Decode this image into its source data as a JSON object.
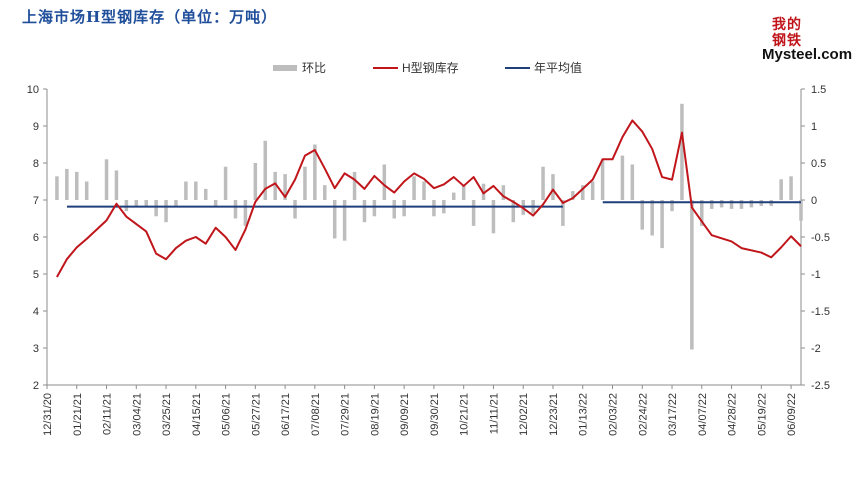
{
  "title": "上海市场H型钢库存（单位：万吨）",
  "logo": {
    "cjk": "我的钢铁",
    "text": "Mysteel.com"
  },
  "colors": {
    "bars": "#bdbdbd",
    "line": "#c0161b",
    "avg": "#1f3f7a",
    "title": "#1f4e9a"
  },
  "chart_data": {
    "type": "bar",
    "legend": [
      {
        "name": "环比",
        "kind": "bar"
      },
      {
        "name": "H型钢库存",
        "kind": "line"
      },
      {
        "name": "年平均值",
        "kind": "line"
      }
    ],
    "legend_position": "top",
    "x_tick_labels": [
      "12/31/20",
      "01/21/21",
      "02/11/21",
      "03/04/21",
      "03/25/21",
      "04/15/21",
      "05/06/21",
      "05/27/21",
      "06/17/21",
      "07/08/21",
      "07/29/21",
      "08/19/21",
      "09/09/21",
      "09/30/21",
      "10/21/21",
      "11/11/21",
      "12/02/21",
      "12/23/21",
      "01/13/22",
      "02/03/22",
      "02/24/22",
      "03/17/22",
      "04/07/22",
      "04/28/22",
      "05/19/22",
      "06/09/22"
    ],
    "x_range": [
      "12/31/20",
      "06/16/22"
    ],
    "left_axis": {
      "min": 2,
      "max": 10,
      "ticks": [
        "2",
        "3",
        "4",
        "5",
        "6",
        "7",
        "8",
        "9",
        "10"
      ]
    },
    "right_axis": {
      "min": -2.5,
      "max": 1.5,
      "ticks": [
        "1.5",
        "1",
        "0.5",
        "0",
        "-0.5",
        "-1",
        "-1.5",
        "-2",
        "-2.5"
      ]
    },
    "grid": false,
    "series": [
      {
        "name": "H型钢库存",
        "axis": "left",
        "type": "line",
        "points": [
          [
            "01/07/21",
            4.92
          ],
          [
            "01/14/21",
            5.4
          ],
          [
            "01/21/21",
            5.72
          ],
          [
            "01/28/21",
            5.95
          ],
          [
            "02/04/21",
            6.2
          ],
          [
            "02/11/21",
            6.45
          ],
          [
            "02/18/21",
            6.9
          ],
          [
            "02/25/21",
            6.55
          ],
          [
            "03/04/21",
            6.35
          ],
          [
            "03/11/21",
            6.15
          ],
          [
            "03/18/21",
            5.55
          ],
          [
            "03/25/21",
            5.4
          ],
          [
            "04/01/21",
            5.7
          ],
          [
            "04/08/21",
            5.9
          ],
          [
            "04/15/21",
            6.0
          ],
          [
            "04/22/21",
            5.82
          ],
          [
            "04/29/21",
            6.25
          ],
          [
            "05/06/21",
            6.0
          ],
          [
            "05/13/21",
            5.65
          ],
          [
            "05/20/21",
            6.2
          ],
          [
            "05/27/21",
            6.95
          ],
          [
            "06/03/21",
            7.3
          ],
          [
            "06/10/21",
            7.45
          ],
          [
            "06/17/21",
            7.08
          ],
          [
            "06/24/21",
            7.55
          ],
          [
            "07/01/21",
            8.2
          ],
          [
            "07/08/21",
            8.35
          ],
          [
            "07/15/21",
            7.85
          ],
          [
            "07/22/21",
            7.32
          ],
          [
            "07/29/21",
            7.72
          ],
          [
            "08/05/21",
            7.55
          ],
          [
            "08/12/21",
            7.3
          ],
          [
            "08/19/21",
            7.65
          ],
          [
            "08/26/21",
            7.4
          ],
          [
            "09/02/21",
            7.2
          ],
          [
            "09/09/21",
            7.5
          ],
          [
            "09/16/21",
            7.72
          ],
          [
            "09/23/21",
            7.57
          ],
          [
            "09/30/21",
            7.32
          ],
          [
            "10/07/21",
            7.42
          ],
          [
            "10/14/21",
            7.62
          ],
          [
            "10/21/21",
            7.38
          ],
          [
            "10/28/21",
            7.62
          ],
          [
            "11/04/21",
            7.18
          ],
          [
            "11/11/21",
            7.38
          ],
          [
            "11/18/21",
            7.1
          ],
          [
            "11/25/21",
            6.95
          ],
          [
            "12/02/21",
            6.78
          ],
          [
            "12/09/21",
            6.58
          ],
          [
            "12/16/21",
            6.88
          ],
          [
            "12/23/21",
            7.28
          ],
          [
            "12/30/21",
            6.92
          ],
          [
            "01/06/22",
            7.05
          ],
          [
            "01/13/22",
            7.3
          ],
          [
            "01/20/22",
            7.55
          ],
          [
            "01/27/22",
            8.1
          ],
          [
            "02/03/22",
            8.1
          ],
          [
            "02/10/22",
            8.7
          ],
          [
            "02/17/22",
            9.15
          ],
          [
            "02/24/22",
            8.85
          ],
          [
            "03/03/22",
            8.38
          ],
          [
            "03/10/22",
            7.62
          ],
          [
            "03/17/22",
            7.55
          ],
          [
            "03/24/22",
            8.82
          ],
          [
            "03/31/22",
            6.8
          ],
          [
            "04/07/22",
            6.42
          ],
          [
            "04/14/22",
            6.05
          ],
          [
            "04/28/22",
            5.88
          ],
          [
            "05/05/22",
            5.7
          ],
          [
            "05/19/22",
            5.58
          ],
          [
            "05/26/22",
            5.45
          ],
          [
            "06/02/22",
            5.72
          ],
          [
            "06/09/22",
            6.02
          ],
          [
            "06/16/22",
            5.75
          ]
        ]
      },
      {
        "name": "环比",
        "axis": "right",
        "type": "bar",
        "points": [
          [
            "01/07/21",
            0.32
          ],
          [
            "01/14/21",
            0.42
          ],
          [
            "01/21/21",
            0.38
          ],
          [
            "01/28/21",
            0.25
          ],
          [
            "02/04/21",
            0.0
          ],
          [
            "02/11/21",
            0.55
          ],
          [
            "02/18/21",
            0.4
          ],
          [
            "02/25/21",
            -0.15
          ],
          [
            "03/04/21",
            -0.1
          ],
          [
            "03/11/21",
            -0.1
          ],
          [
            "03/18/21",
            -0.22
          ],
          [
            "03/25/21",
            -0.3
          ],
          [
            "04/01/21",
            -0.1
          ],
          [
            "04/08/21",
            0.25
          ],
          [
            "04/15/21",
            0.25
          ],
          [
            "04/22/21",
            0.15
          ],
          [
            "04/29/21",
            -0.1
          ],
          [
            "05/06/21",
            0.45
          ],
          [
            "05/13/21",
            -0.25
          ],
          [
            "05/20/21",
            -0.35
          ],
          [
            "05/27/21",
            0.5
          ],
          [
            "06/03/21",
            0.8
          ],
          [
            "06/10/21",
            0.38
          ],
          [
            "06/17/21",
            0.35
          ],
          [
            "06/24/21",
            -0.25
          ],
          [
            "07/01/21",
            0.45
          ],
          [
            "07/08/21",
            0.75
          ],
          [
            "07/15/21",
            0.2
          ],
          [
            "07/22/21",
            -0.52
          ],
          [
            "07/29/21",
            -0.55
          ],
          [
            "08/05/21",
            0.38
          ],
          [
            "08/12/21",
            -0.3
          ],
          [
            "08/19/21",
            -0.22
          ],
          [
            "08/26/21",
            0.48
          ],
          [
            "09/02/21",
            -0.25
          ],
          [
            "09/09/21",
            -0.22
          ],
          [
            "09/16/21",
            0.32
          ],
          [
            "09/23/21",
            0.25
          ],
          [
            "09/30/21",
            -0.22
          ],
          [
            "10/07/21",
            -0.18
          ],
          [
            "10/14/21",
            0.1
          ],
          [
            "10/21/21",
            0.2
          ],
          [
            "10/28/21",
            -0.35
          ],
          [
            "11/04/21",
            0.22
          ],
          [
            "11/11/21",
            -0.45
          ],
          [
            "11/18/21",
            0.2
          ],
          [
            "11/25/21",
            -0.3
          ],
          [
            "12/02/21",
            -0.2
          ],
          [
            "12/09/21",
            -0.18
          ],
          [
            "12/16/21",
            0.45
          ],
          [
            "12/23/21",
            0.35
          ],
          [
            "12/30/21",
            -0.35
          ],
          [
            "01/06/22",
            0.12
          ],
          [
            "01/13/22",
            0.2
          ],
          [
            "01/20/22",
            0.25
          ],
          [
            "01/27/22",
            0.55
          ],
          [
            "02/03/22",
            0.0
          ],
          [
            "02/10/22",
            0.6
          ],
          [
            "02/17/22",
            0.48
          ],
          [
            "02/24/22",
            -0.4
          ],
          [
            "03/03/22",
            -0.48
          ],
          [
            "03/10/22",
            -0.65
          ],
          [
            "03/17/22",
            -0.15
          ],
          [
            "03/24/22",
            1.3
          ],
          [
            "03/31/22",
            -2.02
          ],
          [
            "04/07/22",
            -0.35
          ],
          [
            "04/14/22",
            -0.12
          ],
          [
            "04/21/22",
            -0.1
          ],
          [
            "04/28/22",
            -0.12
          ],
          [
            "05/05/22",
            -0.12
          ],
          [
            "05/12/22",
            -0.1
          ],
          [
            "05/19/22",
            -0.08
          ],
          [
            "05/26/22",
            -0.08
          ],
          [
            "06/02/22",
            0.28
          ],
          [
            "06/09/22",
            0.32
          ],
          [
            "06/16/22",
            -0.28
          ]
        ]
      },
      {
        "name": "年平均值",
        "axis": "left",
        "type": "line",
        "segments": [
          {
            "from": "12/31/20",
            "to": "12/30/21",
            "value": 6.82
          },
          {
            "from": "01/13/22",
            "to": "06/16/22",
            "value": 6.94
          }
        ]
      }
    ]
  }
}
